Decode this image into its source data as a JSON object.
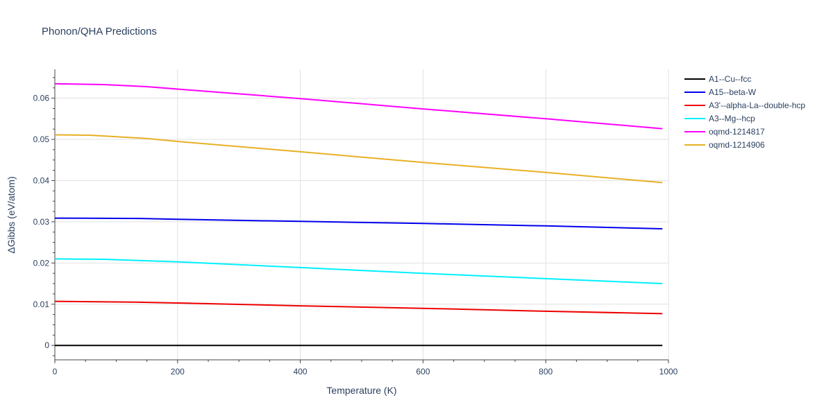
{
  "chart_data": {
    "type": "line",
    "title": "Phonon/QHA Predictions",
    "xlabel": "Temperature (K)",
    "ylabel": "ΔGibbs (eV/atom)",
    "xlim": [
      0,
      1000
    ],
    "ylim": [
      -0.0035,
      0.067
    ],
    "xticks": [
      0,
      200,
      400,
      600,
      800,
      1000
    ],
    "yticks": [
      0,
      0.01,
      0.02,
      0.03,
      0.04,
      0.05,
      0.06
    ],
    "xtick_labels": [
      "0",
      "200",
      "400",
      "600",
      "800",
      "1000"
    ],
    "ytick_labels": [
      "0",
      "0.01",
      "0.02",
      "0.03",
      "0.04",
      "0.05",
      "0.06"
    ],
    "grid": true,
    "legend_position": "top-right",
    "series": [
      {
        "name": "A1--Cu--fcc",
        "color": "#000000",
        "x": [
          0,
          990
        ],
        "y": [
          0,
          0
        ]
      },
      {
        "name": "A15--beta-W",
        "color": "#0000ee",
        "x": [
          0,
          140,
          200,
          400,
          600,
          800,
          990
        ],
        "y": [
          0.0309,
          0.0308,
          0.0306,
          0.0301,
          0.0296,
          0.029,
          0.0283
        ]
      },
      {
        "name": "A3'--alpha-La--double-hcp",
        "color": "#ee0000",
        "x": [
          0,
          130,
          200,
          400,
          600,
          800,
          990
        ],
        "y": [
          0.0107,
          0.0105,
          0.0103,
          0.0096,
          0.009,
          0.0083,
          0.0077
        ]
      },
      {
        "name": "A3--Mg--hcp",
        "color": "#00f0ff",
        "x": [
          0,
          80,
          200,
          400,
          600,
          800,
          990
        ],
        "y": [
          0.021,
          0.0209,
          0.0203,
          0.0189,
          0.0175,
          0.0162,
          0.015
        ]
      },
      {
        "name": "oqmd-1214817",
        "color": "#ff00ff",
        "x": [
          0,
          80,
          150,
          200,
          400,
          600,
          800,
          990
        ],
        "y": [
          0.0635,
          0.0633,
          0.0628,
          0.0622,
          0.0599,
          0.0574,
          0.055,
          0.0526
        ]
      },
      {
        "name": "oqmd-1214906",
        "color": "#e8b024",
        "x": [
          0,
          60,
          150,
          200,
          400,
          600,
          800,
          990
        ],
        "y": [
          0.0511,
          0.051,
          0.0502,
          0.0495,
          0.047,
          0.0444,
          0.042,
          0.0395
        ]
      }
    ]
  }
}
